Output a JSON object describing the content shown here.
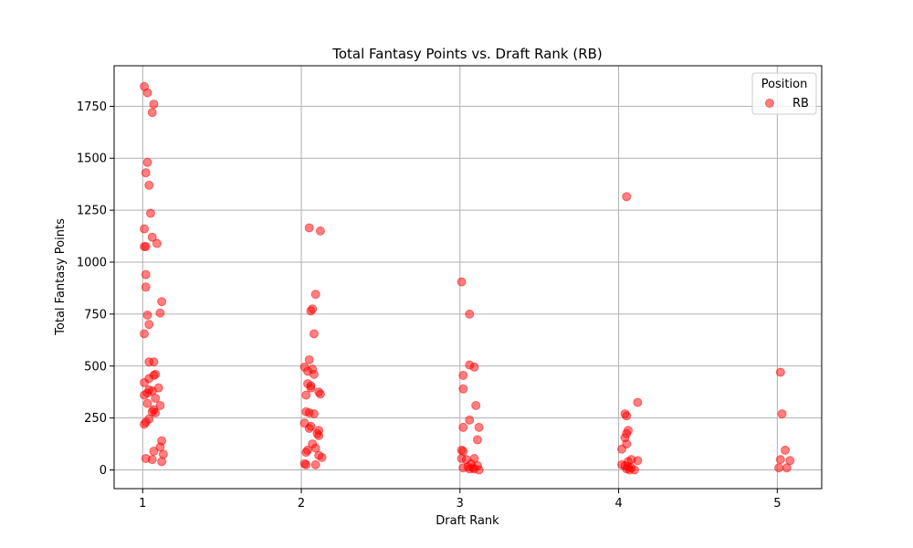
{
  "chart_data": {
    "type": "scatter",
    "title": "Total Fantasy Points vs. Draft Rank (RB)",
    "xlabel": "Draft Rank",
    "ylabel": "Total Fantasy Points",
    "xlim": [
      0.82,
      5.28
    ],
    "ylim": [
      -90,
      1945
    ],
    "xticks": [
      1,
      2,
      3,
      4,
      5
    ],
    "yticks": [
      0,
      250,
      500,
      750,
      1000,
      1250,
      1500,
      1750
    ],
    "grid": true,
    "legend": {
      "title": "Position",
      "placement": "top-right"
    },
    "series": [
      {
        "name": "RB",
        "color": "#ff0000",
        "points": [
          [
            1.01,
            1845
          ],
          [
            1.03,
            1815
          ],
          [
            1.07,
            1760
          ],
          [
            1.06,
            1720
          ],
          [
            1.03,
            1480
          ],
          [
            1.02,
            1430
          ],
          [
            1.04,
            1370
          ],
          [
            1.05,
            1235
          ],
          [
            1.01,
            1160
          ],
          [
            1.06,
            1120
          ],
          [
            1.09,
            1090
          ],
          [
            1.01,
            1075
          ],
          [
            1.02,
            1075
          ],
          [
            1.02,
            940
          ],
          [
            1.02,
            880
          ],
          [
            1.12,
            810
          ],
          [
            1.11,
            755
          ],
          [
            1.03,
            745
          ],
          [
            1.04,
            700
          ],
          [
            1.01,
            655
          ],
          [
            1.04,
            520
          ],
          [
            1.07,
            520
          ],
          [
            1.08,
            460
          ],
          [
            1.07,
            455
          ],
          [
            1.04,
            440
          ],
          [
            1.01,
            420
          ],
          [
            1.1,
            395
          ],
          [
            1.04,
            385
          ],
          [
            1.06,
            380
          ],
          [
            1.03,
            370
          ],
          [
            1.01,
            360
          ],
          [
            1.08,
            345
          ],
          [
            1.03,
            320
          ],
          [
            1.11,
            310
          ],
          [
            1.07,
            290
          ],
          [
            1.06,
            280
          ],
          [
            1.08,
            275
          ],
          [
            1.04,
            245
          ],
          [
            1.02,
            230
          ],
          [
            1.01,
            220
          ],
          [
            1.12,
            140
          ],
          [
            1.11,
            110
          ],
          [
            1.07,
            90
          ],
          [
            1.13,
            75
          ],
          [
            1.02,
            55
          ],
          [
            1.06,
            50
          ],
          [
            1.12,
            40
          ],
          [
            2.05,
            1165
          ],
          [
            2.12,
            1150
          ],
          [
            2.09,
            845
          ],
          [
            2.07,
            775
          ],
          [
            2.06,
            765
          ],
          [
            2.08,
            655
          ],
          [
            2.05,
            530
          ],
          [
            2.02,
            495
          ],
          [
            2.07,
            485
          ],
          [
            2.04,
            475
          ],
          [
            2.08,
            460
          ],
          [
            2.04,
            415
          ],
          [
            2.06,
            405
          ],
          [
            2.06,
            395
          ],
          [
            2.11,
            375
          ],
          [
            2.12,
            365
          ],
          [
            2.03,
            360
          ],
          [
            2.03,
            280
          ],
          [
            2.05,
            275
          ],
          [
            2.08,
            270
          ],
          [
            2.02,
            225
          ],
          [
            2.06,
            210
          ],
          [
            2.05,
            200
          ],
          [
            2.11,
            190
          ],
          [
            2.1,
            175
          ],
          [
            2.11,
            165
          ],
          [
            2.07,
            125
          ],
          [
            2.09,
            105
          ],
          [
            2.04,
            95
          ],
          [
            2.03,
            85
          ],
          [
            2.11,
            70
          ],
          [
            2.13,
            60
          ],
          [
            2.02,
            30
          ],
          [
            2.03,
            25
          ],
          [
            2.09,
            25
          ],
          [
            3.01,
            905
          ],
          [
            3.06,
            750
          ],
          [
            3.06,
            505
          ],
          [
            3.09,
            495
          ],
          [
            3.02,
            455
          ],
          [
            3.02,
            390
          ],
          [
            3.1,
            310
          ],
          [
            3.06,
            240
          ],
          [
            3.02,
            205
          ],
          [
            3.12,
            205
          ],
          [
            3.11,
            145
          ],
          [
            3.01,
            95
          ],
          [
            3.02,
            90
          ],
          [
            3.01,
            55
          ],
          [
            3.04,
            50
          ],
          [
            3.09,
            55
          ],
          [
            3.07,
            30
          ],
          [
            3.11,
            20
          ],
          [
            3.05,
            15
          ],
          [
            3.02,
            10
          ],
          [
            3.08,
            10
          ],
          [
            3.06,
            5
          ],
          [
            3.09,
            5
          ],
          [
            3.12,
            0
          ],
          [
            4.05,
            1315
          ],
          [
            4.12,
            325
          ],
          [
            4.04,
            270
          ],
          [
            4.05,
            260
          ],
          [
            4.06,
            190
          ],
          [
            4.05,
            175
          ],
          [
            4.04,
            155
          ],
          [
            4.02,
            100
          ],
          [
            4.05,
            125
          ],
          [
            4.08,
            50
          ],
          [
            4.12,
            45
          ],
          [
            4.06,
            40
          ],
          [
            4.02,
            25
          ],
          [
            4.04,
            20
          ],
          [
            4.06,
            15
          ],
          [
            4.08,
            10
          ],
          [
            4.05,
            5
          ],
          [
            4.07,
            0
          ],
          [
            4.1,
            0
          ],
          [
            5.02,
            470
          ],
          [
            5.03,
            270
          ],
          [
            5.05,
            95
          ],
          [
            5.02,
            50
          ],
          [
            5.08,
            45
          ],
          [
            5.01,
            10
          ],
          [
            5.06,
            10
          ]
        ]
      }
    ]
  }
}
